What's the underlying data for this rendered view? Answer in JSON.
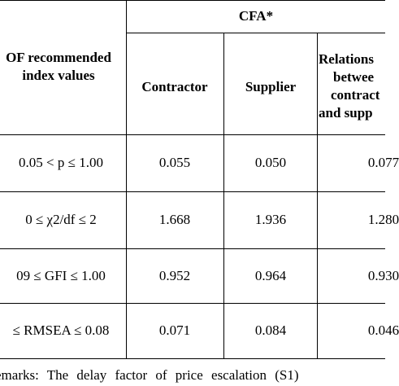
{
  "table": {
    "group_header": "CFA*",
    "index_header": [
      "OF recommended",
      "index values"
    ],
    "columns": [
      "Contractor",
      "Supplier",
      [
        "Relations",
        "betwee",
        "contract",
        "and supp"
      ]
    ],
    "rows": [
      [
        "0.05 < p ≤ 1.00",
        "0.055",
        "0.050",
        "0.077"
      ],
      [
        "0 ≤ χ2/df ≤ 2",
        "1.668",
        "1.936",
        "1.280"
      ],
      [
        "09 ≤ GFI ≤ 1.00",
        "0.952",
        "0.964",
        "0.930"
      ],
      [
        "≤ RMSEA ≤ 0.08",
        "0.071",
        "0.084",
        "0.046"
      ]
    ],
    "remarks": "emarks: The delay factor of price escalation (S1)"
  }
}
